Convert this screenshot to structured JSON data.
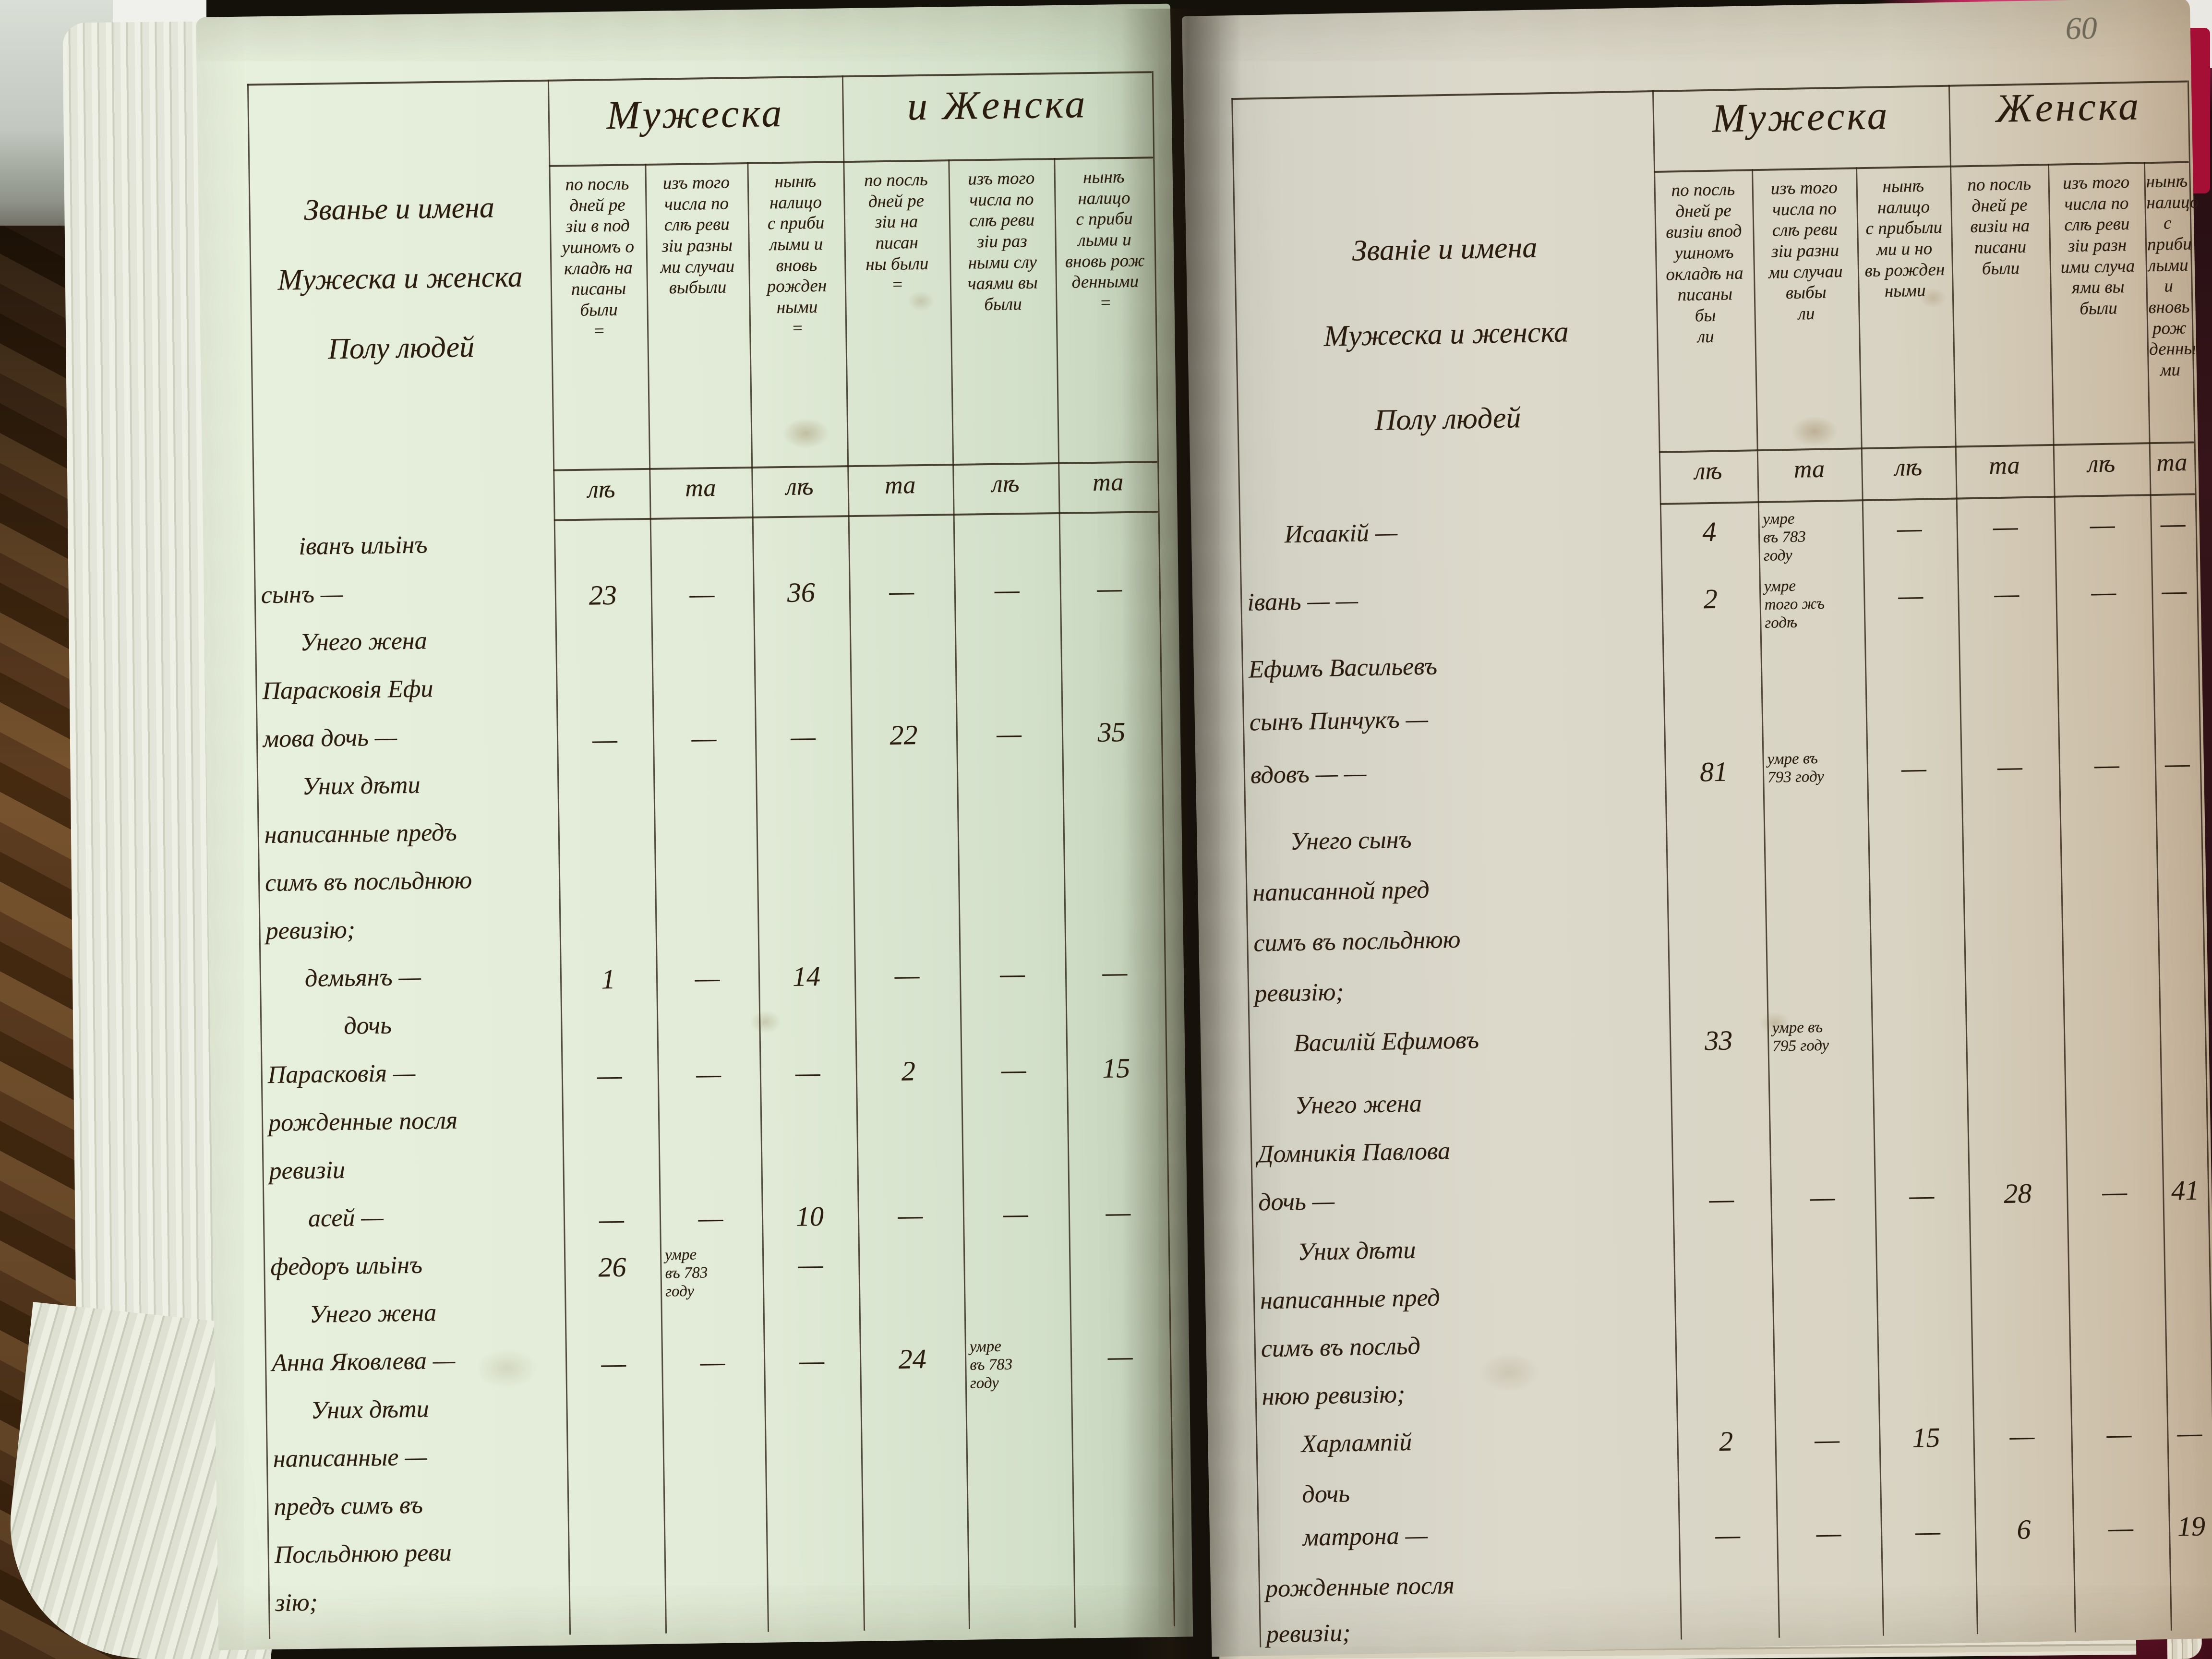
{
  "photo": {
    "page_number": "60"
  },
  "left_page": {
    "title_lines": [
      "Званье и имена",
      "Мужеска и женска",
      "Полу людей"
    ],
    "group_headers": {
      "male": "Мужеска",
      "female": "и Женска"
    },
    "column_headers": [
      {
        "lines": [
          "по посль",
          "дней ре",
          "зіи в под",
          "ушномъ о",
          "кладѣ на",
          "писаны",
          "были",
          "="
        ]
      },
      {
        "lines": [
          "изъ того",
          "числа по",
          "слѣ реви",
          "зіи разны",
          "ми случаи",
          "выбыли"
        ]
      },
      {
        "lines": [
          "нынѣ",
          "налицо",
          "с приби",
          "лыми и",
          "вновь",
          "рожден",
          "ными",
          "="
        ]
      },
      {
        "lines": [
          "по посль",
          "дней ре",
          "зіи на",
          "писан",
          "ны были",
          "="
        ]
      },
      {
        "lines": [
          "изъ того",
          "числа по",
          "слѣ реви",
          "зіи раз",
          "ными слу",
          "чаями вы",
          "были"
        ]
      },
      {
        "lines": [
          "нынѣ",
          "налицо",
          "с приби",
          "лыми и",
          "вновь рож",
          "денными",
          "="
        ]
      }
    ],
    "units": [
      "лѣ",
      "та",
      "лѣ",
      "та",
      "лѣ",
      "та"
    ],
    "rows": [
      {
        "label": "іванъ ильінъ",
        "indent": 1,
        "cells": [
          "",
          "",
          "",
          "",
          "",
          ""
        ]
      },
      {
        "label": "сынъ —",
        "indent": 0,
        "cells": [
          "23",
          "—",
          "36",
          "—",
          "—",
          "—"
        ]
      },
      {
        "label": "Унего жена",
        "indent": 1,
        "cells": [
          "",
          "",
          "",
          "",
          "",
          ""
        ]
      },
      {
        "label": "Парасковія Ефи",
        "indent": 0,
        "cells": [
          "",
          "",
          "",
          "",
          "",
          ""
        ]
      },
      {
        "label": "мова дочь —",
        "indent": 0,
        "cells": [
          "—",
          "—",
          "—",
          "22",
          "—",
          "35"
        ]
      },
      {
        "label": "Уних дѣти",
        "indent": 1,
        "cells": [
          "",
          "",
          "",
          "",
          "",
          ""
        ]
      },
      {
        "label": "написанные предъ",
        "indent": 0,
        "cells": [
          "",
          "",
          "",
          "",
          "",
          ""
        ]
      },
      {
        "label": "симъ въ посльднюю",
        "indent": 0,
        "cells": [
          "",
          "",
          "",
          "",
          "",
          ""
        ]
      },
      {
        "label": "ревизію;",
        "indent": 0,
        "cells": [
          "",
          "",
          "",
          "",
          "",
          ""
        ]
      },
      {
        "label": "демьянъ —",
        "indent": 1,
        "cells": [
          "1",
          "—",
          "14",
          "—",
          "—",
          "—"
        ]
      },
      {
        "label": "дочь",
        "indent": 2,
        "cells": [
          "",
          "",
          "",
          "",
          "",
          ""
        ]
      },
      {
        "label": "Парасковія —",
        "indent": 0,
        "cells": [
          "—",
          "—",
          "—",
          "2",
          "—",
          "15"
        ]
      },
      {
        "label": "рожденные посля",
        "indent": 0,
        "cells": [
          "",
          "",
          "",
          "",
          "",
          ""
        ]
      },
      {
        "label": "ревизіи",
        "indent": 0,
        "cells": [
          "",
          "",
          "",
          "",
          "",
          ""
        ]
      },
      {
        "label": "асей —",
        "indent": 1,
        "cells": [
          "—",
          "—",
          "10",
          "—",
          "—",
          "—"
        ]
      },
      {
        "label": "федоръ ильінъ",
        "indent": 0,
        "cells": [
          "26",
          {
            "lines": [
              "умре",
              "въ 783",
              "году"
            ]
          },
          "—",
          "",
          "",
          ""
        ]
      },
      {
        "label": "Унего жена",
        "indent": 1,
        "cells": [
          "",
          "",
          "",
          "",
          "",
          ""
        ]
      },
      {
        "label": "Анна Яковлева —",
        "indent": 0,
        "cells": [
          "—",
          "—",
          "—",
          "24",
          {
            "lines": [
              "умре",
              "въ 783",
              "году"
            ]
          },
          "—"
        ]
      },
      {
        "label": "Уних дѣти",
        "indent": 1,
        "cells": [
          "",
          "",
          "",
          "",
          "",
          ""
        ]
      },
      {
        "label": "написанные —",
        "indent": 0,
        "cells": [
          "",
          "",
          "",
          "",
          "",
          ""
        ]
      },
      {
        "label": "предъ симъ въ",
        "indent": 0,
        "cells": [
          "",
          "",
          "",
          "",
          "",
          ""
        ]
      },
      {
        "label": "Посльднюю реви",
        "indent": 0,
        "cells": [
          "",
          "",
          "",
          "",
          "",
          ""
        ]
      },
      {
        "label": "зію;",
        "indent": 0,
        "cells": [
          "",
          "",
          "",
          "",
          "",
          ""
        ]
      }
    ]
  },
  "right_page": {
    "title_lines": [
      "Званіе и имена",
      "Мужеска и женска",
      "Полу людей"
    ],
    "group_headers": {
      "male": "Мужеска",
      "female": "Женска"
    },
    "column_headers": [
      {
        "lines": [
          "по посль",
          "дней ре",
          "визіи впод",
          "ушномъ",
          "окладѣ на",
          "писаны",
          "бы",
          "ли"
        ]
      },
      {
        "lines": [
          "изъ того",
          "числа по",
          "слѣ реви",
          "зіи разни",
          "ми случаи",
          "выбы",
          "ли"
        ]
      },
      {
        "lines": [
          "нынѣ",
          "налицо",
          "с прибыли",
          "ми и но",
          "вь рожден",
          "ными"
        ]
      },
      {
        "lines": [
          "по посль",
          "дней ре",
          "визіи на",
          "писани",
          "были"
        ]
      },
      {
        "lines": [
          "изъ того",
          "числа по",
          "слѣ реви",
          "зіи разн",
          "ими случа",
          "ями вы",
          "были"
        ]
      },
      {
        "lines": [
          "нынѣ",
          "налицо",
          "с приби",
          "лыми и",
          "вновь рож",
          "денны",
          "ми"
        ]
      }
    ],
    "units": [
      "лѣ",
      "та",
      "лѣ",
      "та",
      "лѣ",
      "та"
    ],
    "rows": [
      {
        "label": "Исаакій —",
        "indent": 1,
        "h": 140,
        "cells": [
          "4",
          {
            "lines": [
              "умре",
              "въ 783",
              "году"
            ]
          },
          "—",
          "—",
          "—",
          "—"
        ]
      },
      {
        "label": "івань — —",
        "indent": 0,
        "h": 140,
        "cells": [
          "2",
          {
            "lines": [
              "умре",
              "того жъ",
              "годѣ"
            ]
          },
          "—",
          "—",
          "—",
          "—"
        ]
      },
      {
        "label": "Ефимъ Васильевъ",
        "indent": 0,
        "h": 110,
        "cells": [
          "",
          "",
          "",
          "",
          "",
          ""
        ]
      },
      {
        "label": "сынъ Пинчукъ —",
        "indent": 0,
        "h": 110,
        "cells": [
          "",
          "",
          "",
          "",
          "",
          ""
        ]
      },
      {
        "label": "вдовъ — —",
        "indent": 0,
        "h": 140,
        "cells": [
          "81",
          {
            "lines": [
              "умре въ",
              "793 году"
            ]
          },
          "—",
          "—",
          "—",
          "—"
        ]
      },
      {
        "label": "Унего сынъ",
        "indent": 1,
        "h": 105,
        "cells": [
          "",
          "",
          "",
          "",
          "",
          ""
        ]
      },
      {
        "label": "написанной пред",
        "indent": 0,
        "h": 105,
        "cells": [
          "",
          "",
          "",
          "",
          "",
          ""
        ]
      },
      {
        "label": "симъ въ посльднюю",
        "indent": 0,
        "h": 105,
        "cells": [
          "",
          "",
          "",
          "",
          "",
          ""
        ]
      },
      {
        "label": "ревизію;",
        "indent": 0,
        "h": 105,
        "cells": [
          "",
          "",
          "",
          "",
          "",
          ""
        ]
      },
      {
        "label": "Василій Ефимовъ",
        "indent": 1,
        "h": 130,
        "cells": [
          "33",
          {
            "lines": [
              "умре въ",
              "795 году"
            ]
          },
          "",
          "",
          "",
          ""
        ]
      },
      {
        "label": "Унего жена",
        "indent": 1,
        "h": 100,
        "cells": [
          "",
          "",
          "",
          "",
          "",
          ""
        ]
      },
      {
        "label": "Домникія Павлова",
        "indent": 0,
        "h": 100,
        "cells": [
          "",
          "",
          "",
          "",
          "",
          ""
        ]
      },
      {
        "label": "дочь —",
        "indent": 0,
        "h": 105,
        "cells": [
          "—",
          "—",
          "—",
          "28",
          "—",
          "41"
        ]
      },
      {
        "label": "Уних дѣти",
        "indent": 1,
        "h": 100,
        "cells": [
          "",
          "",
          "",
          "",
          "",
          ""
        ]
      },
      {
        "label": "написанные пред",
        "indent": 0,
        "h": 100,
        "cells": [
          "",
          "",
          "",
          "",
          "",
          ""
        ]
      },
      {
        "label": "симъ въ посльд",
        "indent": 0,
        "h": 100,
        "cells": [
          "",
          "",
          "",
          "",
          "",
          ""
        ]
      },
      {
        "label": "нюю ревизію;",
        "indent": 0,
        "h": 100,
        "cells": [
          "",
          "",
          "",
          "",
          "",
          ""
        ]
      },
      {
        "label": "Харлампій",
        "indent": 1,
        "h": 105,
        "cells": [
          "2",
          "—",
          "15",
          "—",
          "—",
          "—"
        ]
      },
      {
        "label": "дочь",
        "indent": 1,
        "h": 90,
        "cells": [
          "",
          "",
          "",
          "",
          "",
          ""
        ]
      },
      {
        "label": "матрона —",
        "indent": 1,
        "h": 105,
        "cells": [
          "—",
          "—",
          "—",
          "6",
          "—",
          "19"
        ]
      },
      {
        "label": "рожденные посля",
        "indent": 0,
        "h": 95,
        "cells": [
          "",
          "",
          "",
          "",
          "",
          ""
        ]
      },
      {
        "label": "ревизіи;",
        "indent": 0,
        "h": 70,
        "cells": [
          "",
          "",
          "",
          "",
          "",
          ""
        ]
      }
    ]
  }
}
